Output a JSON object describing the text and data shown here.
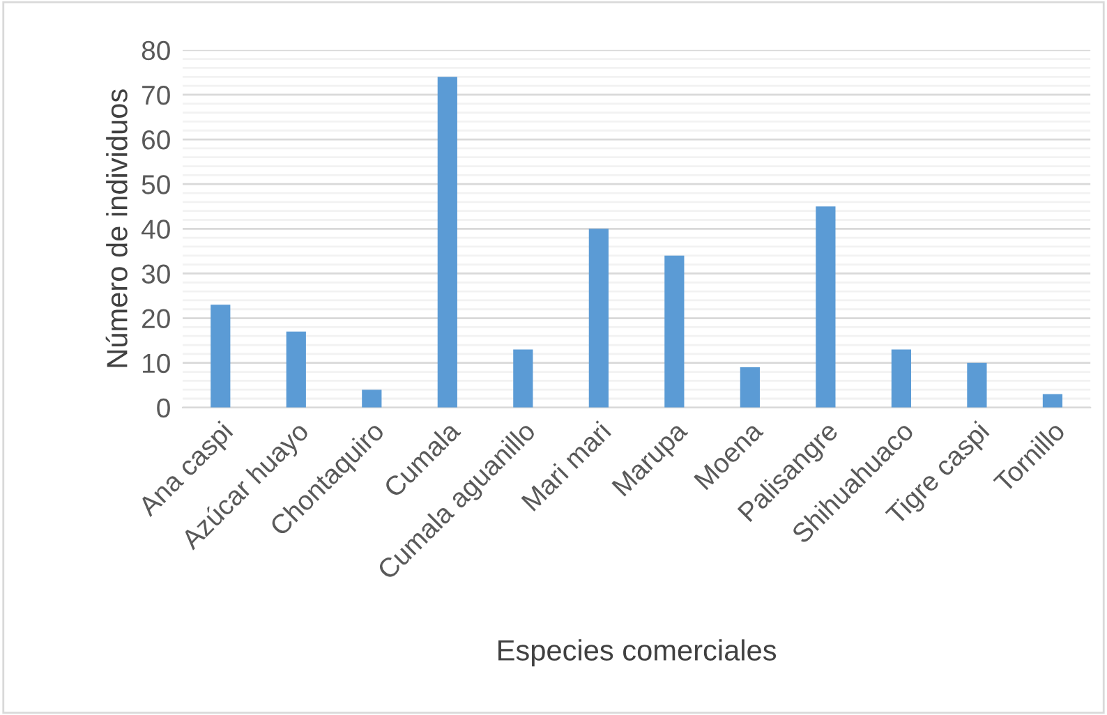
{
  "chart_data": {
    "type": "bar",
    "xlabel": "Especies comerciales",
    "ylabel": "Número de individuos",
    "categories": [
      "Ana caspi",
      "Azúcar huayo",
      "Chontaquiro",
      "Cumala",
      "Cumala aguanillo",
      "Mari mari",
      "Marupa",
      "Moena",
      "Palisangre",
      "Shihuahuaco",
      "Tigre caspi",
      "Tornillo"
    ],
    "values": [
      23,
      17,
      4,
      74,
      13,
      40,
      34,
      9,
      45,
      13,
      10,
      3
    ],
    "color": "#5b9bd5",
    "ylim": [
      0,
      80
    ],
    "yticks": [
      0,
      10,
      20,
      30,
      40,
      50,
      60,
      70,
      80
    ],
    "grid": "y"
  }
}
